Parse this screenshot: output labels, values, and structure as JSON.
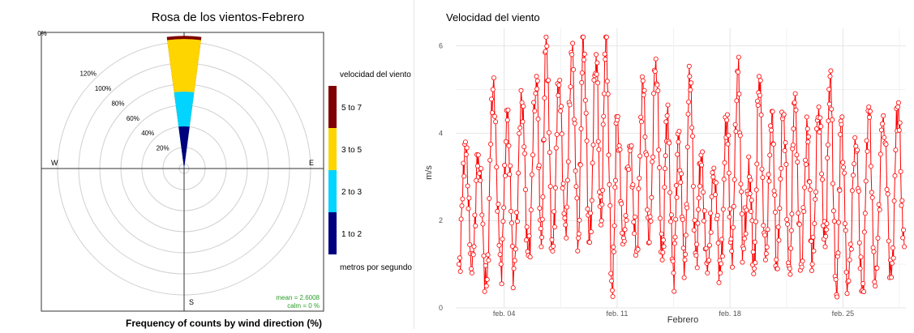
{
  "chart_data": [
    {
      "type": "windrose",
      "title": "Rosa de los vientos-Febrero",
      "xlabel": "Frequency of counts by wind direction (%)",
      "directions": [
        "W",
        "E",
        "S"
      ],
      "radial_ticks": [
        "20%",
        "40%",
        "60%",
        "80%",
        "100%",
        "120%",
        "0%"
      ],
      "rlim": [
        0,
        130
      ],
      "legend_title": "velocidad del viento",
      "legend_units": "metros por segundo",
      "legend_position": "right",
      "bins": [
        {
          "label": "1 to 2",
          "color": "#00007f",
          "cumulative": 40
        },
        {
          "label": "2 to 3",
          "color": "#00d4ff",
          "cumulative": 73
        },
        {
          "label": "3 to 5",
          "color": "#ffd500",
          "cumulative": 123
        },
        {
          "label": "5 to 7",
          "color": "#7f0000",
          "cumulative": 126
        }
      ],
      "sector": "N",
      "stats": {
        "mean": "mean = 2.6008",
        "calm": "calm = 0 %"
      }
    },
    {
      "type": "line",
      "title": "Velocidad del viento",
      "xlabel": "Febrero",
      "ylabel": "m/s",
      "ylim": [
        0,
        6.4
      ],
      "yticks": [
        "0",
        "2",
        "4",
        "6"
      ],
      "xticks": [
        "feb. 04",
        "feb. 11",
        "feb. 18",
        "feb. 25"
      ],
      "xtick_days": [
        4,
        11,
        18,
        25
      ],
      "xlim_days": [
        1,
        28.9
      ],
      "series_color": "#ff0000",
      "grid": true,
      "peaks": [
        [
          1.2,
          1.0
        ],
        [
          1.6,
          3.8
        ],
        [
          2.0,
          0.8
        ],
        [
          2.4,
          3.5
        ],
        [
          2.9,
          0.5
        ],
        [
          3.3,
          5.0
        ],
        [
          3.8,
          1.0
        ],
        [
          4.2,
          4.3
        ],
        [
          4.6,
          0.9
        ],
        [
          5.1,
          4.7
        ],
        [
          5.5,
          1.2
        ],
        [
          6.0,
          5.3
        ],
        [
          6.3,
          1.4
        ],
        [
          6.6,
          6.2
        ],
        [
          7.0,
          1.3
        ],
        [
          7.4,
          5.1
        ],
        [
          7.8,
          1.9
        ],
        [
          8.2,
          5.8
        ],
        [
          8.6,
          1.6
        ],
        [
          8.9,
          6.2
        ],
        [
          9.3,
          1.5
        ],
        [
          9.7,
          5.8
        ],
        [
          10.0,
          1.9
        ],
        [
          10.3,
          6.2
        ],
        [
          10.7,
          0.4
        ],
        [
          11.0,
          4.3
        ],
        [
          11.4,
          1.6
        ],
        [
          11.8,
          3.6
        ],
        [
          12.2,
          1.3
        ],
        [
          12.6,
          5.2
        ],
        [
          13.0,
          1.5
        ],
        [
          13.4,
          5.7
        ],
        [
          13.8,
          1.1
        ],
        [
          14.1,
          4.4
        ],
        [
          14.5,
          0.8
        ],
        [
          14.8,
          3.8
        ],
        [
          15.2,
          1.1
        ],
        [
          15.5,
          5.3
        ],
        [
          15.9,
          1.2
        ],
        [
          16.2,
          3.5
        ],
        [
          16.6,
          0.8
        ],
        [
          17.0,
          3.2
        ],
        [
          17.4,
          0.8
        ],
        [
          17.8,
          4.3
        ],
        [
          18.1,
          1.3
        ],
        [
          18.5,
          5.4
        ],
        [
          18.8,
          1.4
        ],
        [
          19.2,
          3.0
        ],
        [
          19.5,
          0.9
        ],
        [
          19.8,
          5.3
        ],
        [
          20.2,
          1.1
        ],
        [
          20.6,
          4.5
        ],
        [
          20.9,
          0.9
        ],
        [
          21.3,
          4.4
        ],
        [
          21.7,
          0.9
        ],
        [
          22.0,
          4.7
        ],
        [
          22.4,
          1.0
        ],
        [
          22.8,
          4.1
        ],
        [
          23.1,
          1.0
        ],
        [
          23.5,
          4.6
        ],
        [
          23.9,
          1.4
        ],
        [
          24.2,
          5.3
        ],
        [
          24.6,
          0.3
        ],
        [
          24.9,
          4.2
        ],
        [
          25.3,
          0.6
        ],
        [
          25.8,
          3.7
        ],
        [
          26.2,
          0.4
        ],
        [
          26.6,
          4.6
        ],
        [
          27.0,
          0.5
        ],
        [
          27.5,
          4.4
        ],
        [
          28.0,
          0.7
        ],
        [
          28.4,
          4.6
        ],
        [
          28.8,
          1.4
        ]
      ]
    }
  ]
}
